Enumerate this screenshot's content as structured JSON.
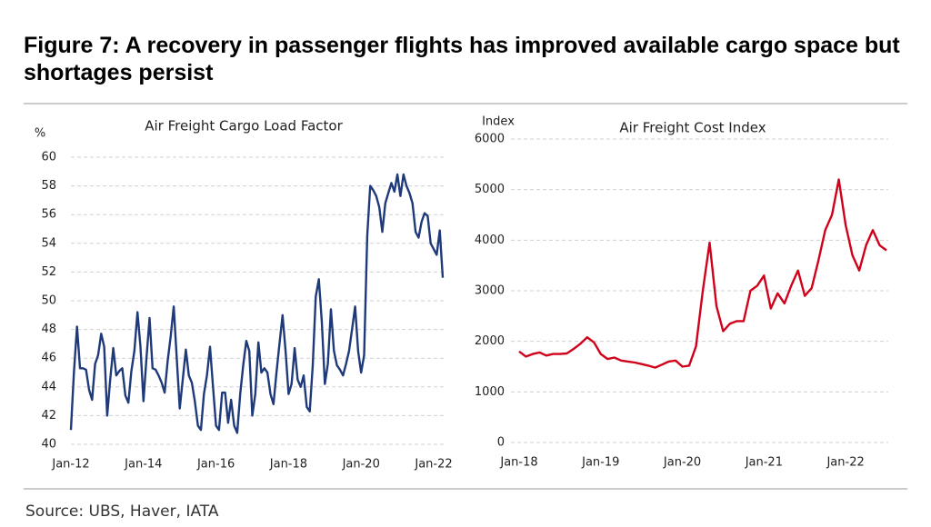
{
  "title": "Figure 7: A recovery in passenger flights has improved available cargo space but shortages persist",
  "source": "Source: UBS, Haver, IATA",
  "chart_data": [
    {
      "type": "line",
      "title": "Air Freight Cargo Load Factor",
      "y_label": "%",
      "color": "#1f3a7a",
      "grid": true,
      "xlim": [
        "2012-01",
        "2022-04"
      ],
      "ylim": [
        40,
        60
      ],
      "yticks": [
        40,
        42,
        44,
        46,
        48,
        50,
        52,
        54,
        56,
        58,
        60
      ],
      "xticks": [
        {
          "value": "2012-01",
          "label": "Jan-12"
        },
        {
          "value": "2014-01",
          "label": "Jan-14"
        },
        {
          "value": "2016-01",
          "label": "Jan-16"
        },
        {
          "value": "2018-01",
          "label": "Jan-18"
        },
        {
          "value": "2020-01",
          "label": "Jan-20"
        },
        {
          "value": "2022-01",
          "label": "Jan-22"
        }
      ],
      "x": [
        "2012-01",
        "2012-02",
        "2012-03",
        "2012-04",
        "2012-05",
        "2012-06",
        "2012-07",
        "2012-08",
        "2012-09",
        "2012-10",
        "2012-11",
        "2012-12",
        "2013-01",
        "2013-02",
        "2013-03",
        "2013-04",
        "2013-05",
        "2013-06",
        "2013-07",
        "2013-08",
        "2013-09",
        "2013-10",
        "2013-11",
        "2013-12",
        "2014-01",
        "2014-02",
        "2014-03",
        "2014-04",
        "2014-05",
        "2014-06",
        "2014-07",
        "2014-08",
        "2014-09",
        "2014-10",
        "2014-11",
        "2014-12",
        "2015-01",
        "2015-02",
        "2015-03",
        "2015-04",
        "2015-05",
        "2015-06",
        "2015-07",
        "2015-08",
        "2015-09",
        "2015-10",
        "2015-11",
        "2015-12",
        "2016-01",
        "2016-02",
        "2016-03",
        "2016-04",
        "2016-05",
        "2016-06",
        "2016-07",
        "2016-08",
        "2016-09",
        "2016-10",
        "2016-11",
        "2016-12",
        "2017-01",
        "2017-02",
        "2017-03",
        "2017-04",
        "2017-05",
        "2017-06",
        "2017-07",
        "2017-08",
        "2017-09",
        "2017-10",
        "2017-11",
        "2017-12",
        "2018-01",
        "2018-02",
        "2018-03",
        "2018-04",
        "2018-05",
        "2018-06",
        "2018-07",
        "2018-08",
        "2018-09",
        "2018-10",
        "2018-11",
        "2018-12",
        "2019-01",
        "2019-02",
        "2019-03",
        "2019-04",
        "2019-05",
        "2019-06",
        "2019-07",
        "2019-08",
        "2019-09",
        "2019-10",
        "2019-11",
        "2019-12",
        "2020-01",
        "2020-02",
        "2020-03",
        "2020-04",
        "2020-05",
        "2020-06",
        "2020-07",
        "2020-08",
        "2020-09",
        "2020-10",
        "2020-11",
        "2020-12",
        "2021-01",
        "2021-02",
        "2021-03",
        "2021-04",
        "2021-05",
        "2021-06",
        "2021-07",
        "2021-08",
        "2021-09",
        "2021-10",
        "2021-11",
        "2021-12",
        "2022-01",
        "2022-02",
        "2022-03",
        "2022-04"
      ],
      "values": [
        41,
        45,
        48.2,
        45.3,
        45.3,
        45.2,
        43.8,
        43.1,
        45.6,
        46.2,
        47.7,
        46.8,
        42.0,
        44.5,
        46.7,
        44.8,
        45.1,
        45.3,
        43.4,
        42.9,
        45.1,
        46.5,
        49.2,
        46.8,
        43.0,
        46.0,
        48.8,
        45.3,
        45.2,
        44.8,
        44.3,
        43.6,
        45.8,
        47.5,
        49.6,
        46.0,
        42.5,
        44.5,
        46.6,
        44.8,
        44.3,
        43.0,
        41.3,
        41.0,
        43.5,
        44.8,
        46.8,
        44.0,
        41.3,
        41.0,
        43.6,
        43.6,
        41.5,
        43.1,
        41.3,
        40.8,
        43.5,
        45.5,
        47.2,
        46.5,
        42.0,
        43.5,
        47.1,
        45.0,
        45.3,
        45.0,
        43.5,
        42.8,
        45.0,
        47.0,
        49.0,
        46.5,
        43.5,
        44.2,
        46.7,
        44.5,
        44.0,
        44.8,
        42.6,
        42.3,
        45.5,
        50.3,
        51.5,
        48.5,
        44.2,
        45.6,
        49.4,
        46.5,
        45.5,
        45.2,
        44.8,
        45.6,
        46.5,
        48.0,
        49.6,
        46.5,
        45.0,
        46.2,
        54.5,
        58.0,
        57.7,
        57.3,
        56.5,
        54.8,
        56.8,
        57.5,
        58.2,
        57.6,
        58.8,
        57.3,
        58.8,
        58.0,
        57.5,
        56.8,
        54.8,
        54.4,
        55.5,
        56.1,
        55.9,
        54.0,
        53.6,
        53.2,
        54.9,
        51.6
      ]
    },
    {
      "type": "line",
      "title": "Air Freight Cost Index",
      "y_label": "Index",
      "color": "#d0021b",
      "grid": true,
      "xlim": [
        "2018-01",
        "2022-07"
      ],
      "ylim": [
        0,
        6000
      ],
      "yticks": [
        0,
        1000,
        2000,
        3000,
        4000,
        5000,
        6000
      ],
      "xticks": [
        {
          "value": "2018-01",
          "label": "Jan-18"
        },
        {
          "value": "2019-01",
          "label": "Jan-19"
        },
        {
          "value": "2020-01",
          "label": "Jan-20"
        },
        {
          "value": "2021-01",
          "label": "Jan-21"
        },
        {
          "value": "2022-01",
          "label": "Jan-22"
        }
      ],
      "x": [
        "2018-01",
        "2018-02",
        "2018-03",
        "2018-04",
        "2018-05",
        "2018-06",
        "2018-07",
        "2018-08",
        "2018-09",
        "2018-10",
        "2018-11",
        "2018-12",
        "2019-01",
        "2019-02",
        "2019-03",
        "2019-04",
        "2019-05",
        "2019-06",
        "2019-07",
        "2019-08",
        "2019-09",
        "2019-10",
        "2019-11",
        "2019-12",
        "2020-01",
        "2020-02",
        "2020-03",
        "2020-04",
        "2020-05",
        "2020-06",
        "2020-07",
        "2020-08",
        "2020-09",
        "2020-10",
        "2020-11",
        "2020-12",
        "2021-01",
        "2021-02",
        "2021-03",
        "2021-04",
        "2021-05",
        "2021-06",
        "2021-07",
        "2021-08",
        "2021-09",
        "2021-10",
        "2021-11",
        "2021-12",
        "2022-01",
        "2022-02",
        "2022-03",
        "2022-04",
        "2022-05",
        "2022-06",
        "2022-07"
      ],
      "values": [
        1800,
        1700,
        1750,
        1780,
        1720,
        1750,
        1750,
        1760,
        1850,
        1950,
        2080,
        1980,
        1750,
        1650,
        1680,
        1620,
        1600,
        1580,
        1550,
        1520,
        1480,
        1540,
        1600,
        1620,
        1500,
        1520,
        1900,
        3000,
        3950,
        2700,
        2200,
        2350,
        2400,
        2400,
        3000,
        3100,
        3300,
        2650,
        2950,
        2750,
        3100,
        3400,
        2900,
        3050,
        3600,
        4200,
        4500,
        5200,
        4300,
        3700,
        3400,
        3900,
        4200,
        3900,
        3800
      ]
    }
  ]
}
